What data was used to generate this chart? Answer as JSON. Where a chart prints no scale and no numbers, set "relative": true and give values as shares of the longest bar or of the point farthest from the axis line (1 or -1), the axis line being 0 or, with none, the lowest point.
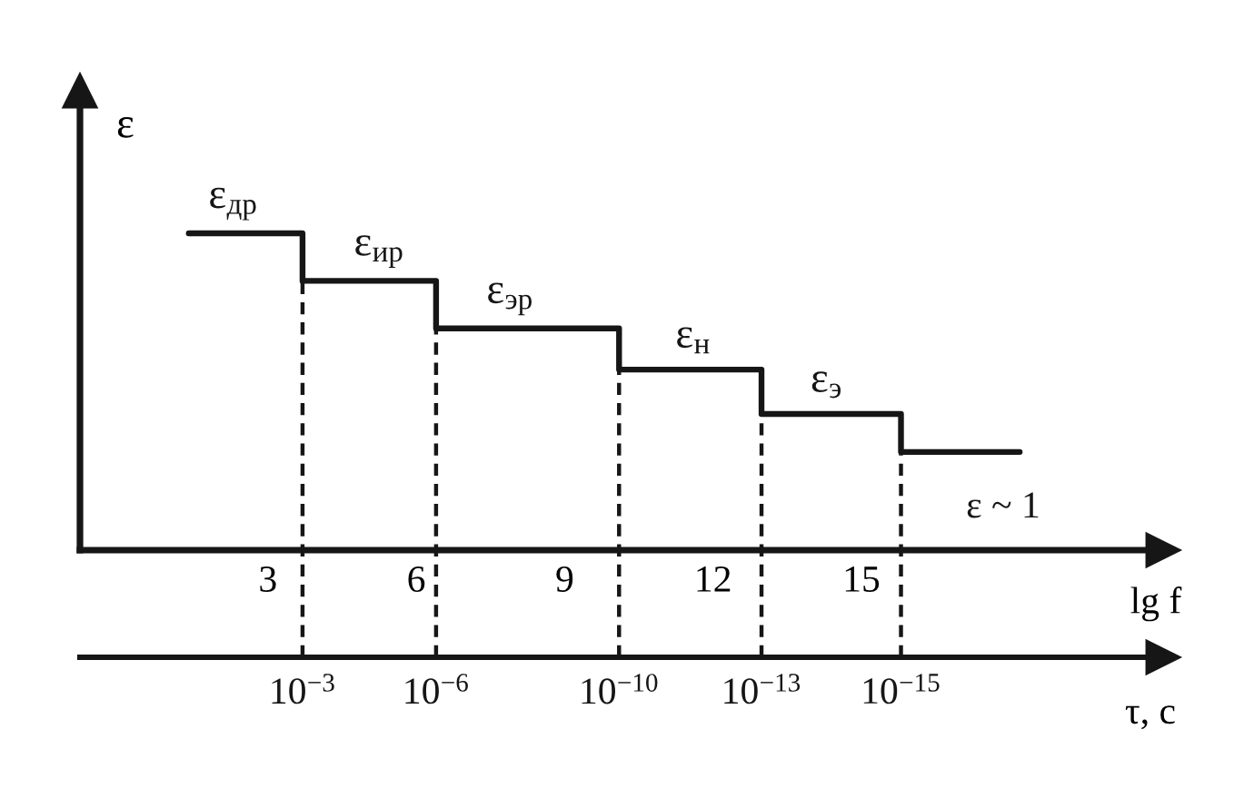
{
  "chart_data": {
    "type": "step",
    "relative": true,
    "x": [
      1.4,
      3.7,
      6.4,
      10.1,
      12.98,
      15.8,
      18.2
    ],
    "values": [
      1,
      0.85,
      0.7,
      0.57,
      0.43,
      0.31,
      0.31
    ],
    "color": "#161616",
    "line_style": "solid",
    "marker": "none",
    "grid": false,
    "xlim": [
      -0.8,
      21.1
    ],
    "xticks": [
      3,
      6,
      9,
      12,
      15
    ],
    "xlabel": "lg f",
    "ylabel": "ε",
    "x2label": "τ, c",
    "ref_lines": [
      {
        "axis": "x",
        "value": 3.7,
        "label": "10$^{−3}$",
        "line_style": "dashed",
        "color": "#161616"
      },
      {
        "axis": "x",
        "value": 6.4,
        "label": "10$^{−6}$",
        "line_style": "dashed",
        "color": "#161616"
      },
      {
        "axis": "x",
        "value": 10.1,
        "label": "10$^{−10}$",
        "line_style": "dashed",
        "color": "#161616"
      },
      {
        "axis": "x",
        "value": 12.98,
        "label": "10$^{−13}$",
        "line_style": "dashed",
        "color": "#161616"
      },
      {
        "axis": "x",
        "value": 15.8,
        "label": "10$^{−15}$",
        "line_style": "dashed",
        "color": "#161616"
      }
    ],
    "annotations": [
      {
        "text": "ε$_{др}$",
        "x": 2.3,
        "y": 1
      },
      {
        "text": "ε$_{ир}$",
        "x": 5.25,
        "y": 0.85
      },
      {
        "text": "ε$_{эр}$",
        "x": 7.9,
        "y": 0.7
      },
      {
        "text": "ε$_{н}$",
        "x": 11.6,
        "y": 0.57
      },
      {
        "text": "ε$_{э}$",
        "x": 14.3,
        "y": 0.43
      },
      "ε ~ 1"
    ]
  }
}
